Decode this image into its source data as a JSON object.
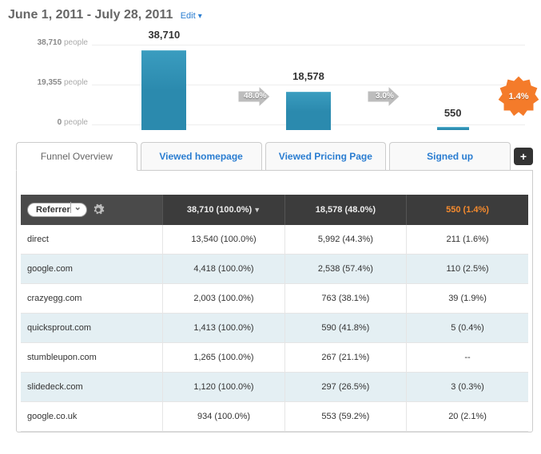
{
  "header": {
    "date_range": "June 1, 2011 - July 28, 2011",
    "edit_label": "Edit"
  },
  "chart": {
    "type": "bar",
    "max_value": 38710,
    "y_ticks": [
      {
        "value": 38710,
        "label_num": "38,710",
        "label_suffix": "people"
      },
      {
        "value": 19355,
        "label_num": "19,355",
        "label_suffix": "people"
      },
      {
        "value": 0,
        "label_num": "0",
        "label_suffix": "people"
      }
    ],
    "bar_color": "#2b8aae",
    "steps": [
      {
        "label": "38,710",
        "value": 38710
      },
      {
        "label": "18,578",
        "value": 18578
      },
      {
        "label": "550",
        "value": 550
      }
    ],
    "arrows": [
      {
        "label": "48.0%"
      },
      {
        "label": "3.0%"
      }
    ],
    "badge": {
      "label": "1.4%",
      "color": "#f47b2a"
    }
  },
  "tabs": {
    "items": [
      {
        "label": "Funnel Overview"
      },
      {
        "label": "Viewed homepage"
      },
      {
        "label": "Viewed Pricing Page"
      },
      {
        "label": "Signed up"
      }
    ],
    "add_label": "+"
  },
  "table": {
    "dimension_label": "Referrer",
    "header_cells": [
      "38,710 (100.0%)",
      "18,578 (48.0%)",
      "550 (1.4%)"
    ],
    "rows": [
      {
        "name": "direct",
        "c1": "13,540 (100.0%)",
        "c2": "5,992 (44.3%)",
        "c3": "211 (1.6%)"
      },
      {
        "name": "google.com",
        "c1": "4,418 (100.0%)",
        "c2": "2,538 (57.4%)",
        "c3": "110 (2.5%)"
      },
      {
        "name": "crazyegg.com",
        "c1": "2,003 (100.0%)",
        "c2": "763 (38.1%)",
        "c3": "39 (1.9%)"
      },
      {
        "name": "quicksprout.com",
        "c1": "1,413 (100.0%)",
        "c2": "590 (41.8%)",
        "c3": "5 (0.4%)"
      },
      {
        "name": "stumbleupon.com",
        "c1": "1,265 (100.0%)",
        "c2": "267 (21.1%)",
        "c3": "--"
      },
      {
        "name": "slidedeck.com",
        "c1": "1,120 (100.0%)",
        "c2": "297 (26.5%)",
        "c3": "3 (0.3%)"
      },
      {
        "name": "google.co.uk",
        "c1": "934 (100.0%)",
        "c2": "553 (59.2%)",
        "c3": "20 (2.1%)"
      }
    ]
  }
}
